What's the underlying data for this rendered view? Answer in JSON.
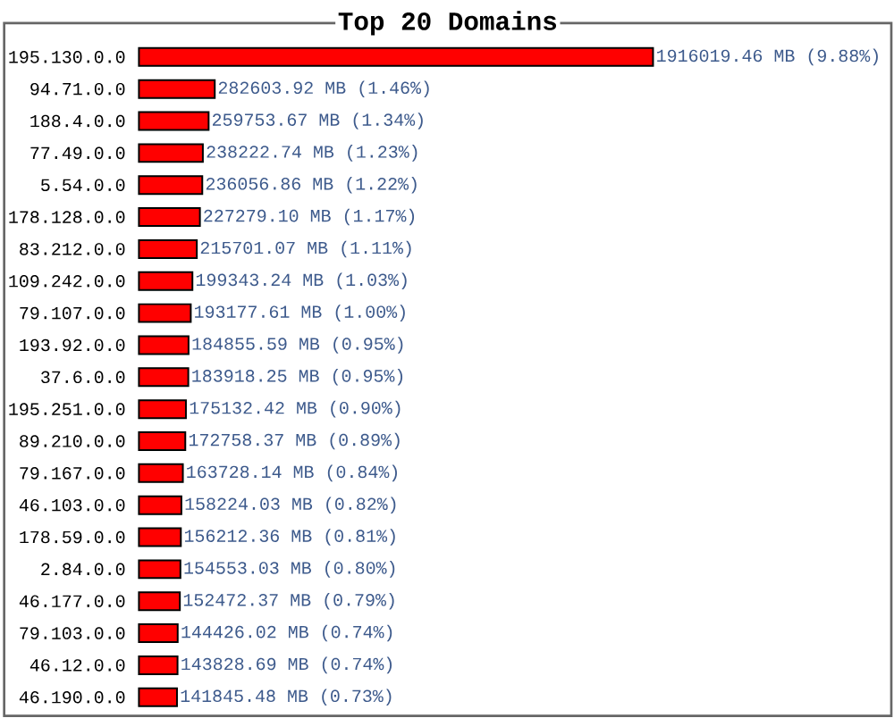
{
  "chart_data": {
    "type": "bar",
    "orientation": "horizontal",
    "title": "Top 20 Domains",
    "categories": [
      "195.130.0.0",
      "94.71.0.0",
      "188.4.0.0",
      "77.49.0.0",
      "5.54.0.0",
      "178.128.0.0",
      "83.212.0.0",
      "109.242.0.0",
      "79.107.0.0",
      "193.92.0.0",
      "37.6.0.0",
      "195.251.0.0",
      "89.210.0.0",
      "79.167.0.0",
      "46.103.0.0",
      "178.59.0.0",
      "2.84.0.0",
      "46.177.0.0",
      "79.103.0.0",
      "46.12.0.0",
      "46.190.0.0"
    ],
    "values": [
      1916019.46,
      282603.92,
      259753.67,
      238222.74,
      236056.86,
      227279.1,
      215701.07,
      199343.24,
      193177.61,
      184855.59,
      183918.25,
      175132.42,
      172758.37,
      163728.14,
      158224.03,
      156212.36,
      154553.03,
      152472.37,
      144426.02,
      143828.69,
      141845.48
    ],
    "value_labels": [
      "1916019.46 MB (9.88%)",
      "282603.92 MB (1.46%)",
      "259753.67 MB (1.34%)",
      "238222.74 MB (1.23%)",
      "236056.86 MB (1.22%)",
      "227279.10 MB (1.17%)",
      "215701.07 MB (1.11%)",
      "199343.24 MB (1.03%)",
      "193177.61 MB (1.00%)",
      "184855.59 MB (0.95%)",
      "183918.25 MB (0.95%)",
      "175132.42 MB (0.90%)",
      "172758.37 MB (0.89%)",
      "163728.14 MB (0.84%)",
      "158224.03 MB (0.82%)",
      "156212.36 MB (0.81%)",
      "154553.03 MB (0.80%)",
      "152472.37 MB (0.79%)",
      "144426.02 MB (0.74%)",
      "143828.69 MB (0.74%)",
      "141845.48 MB (0.73%)"
    ],
    "color": "#ff0000"
  }
}
